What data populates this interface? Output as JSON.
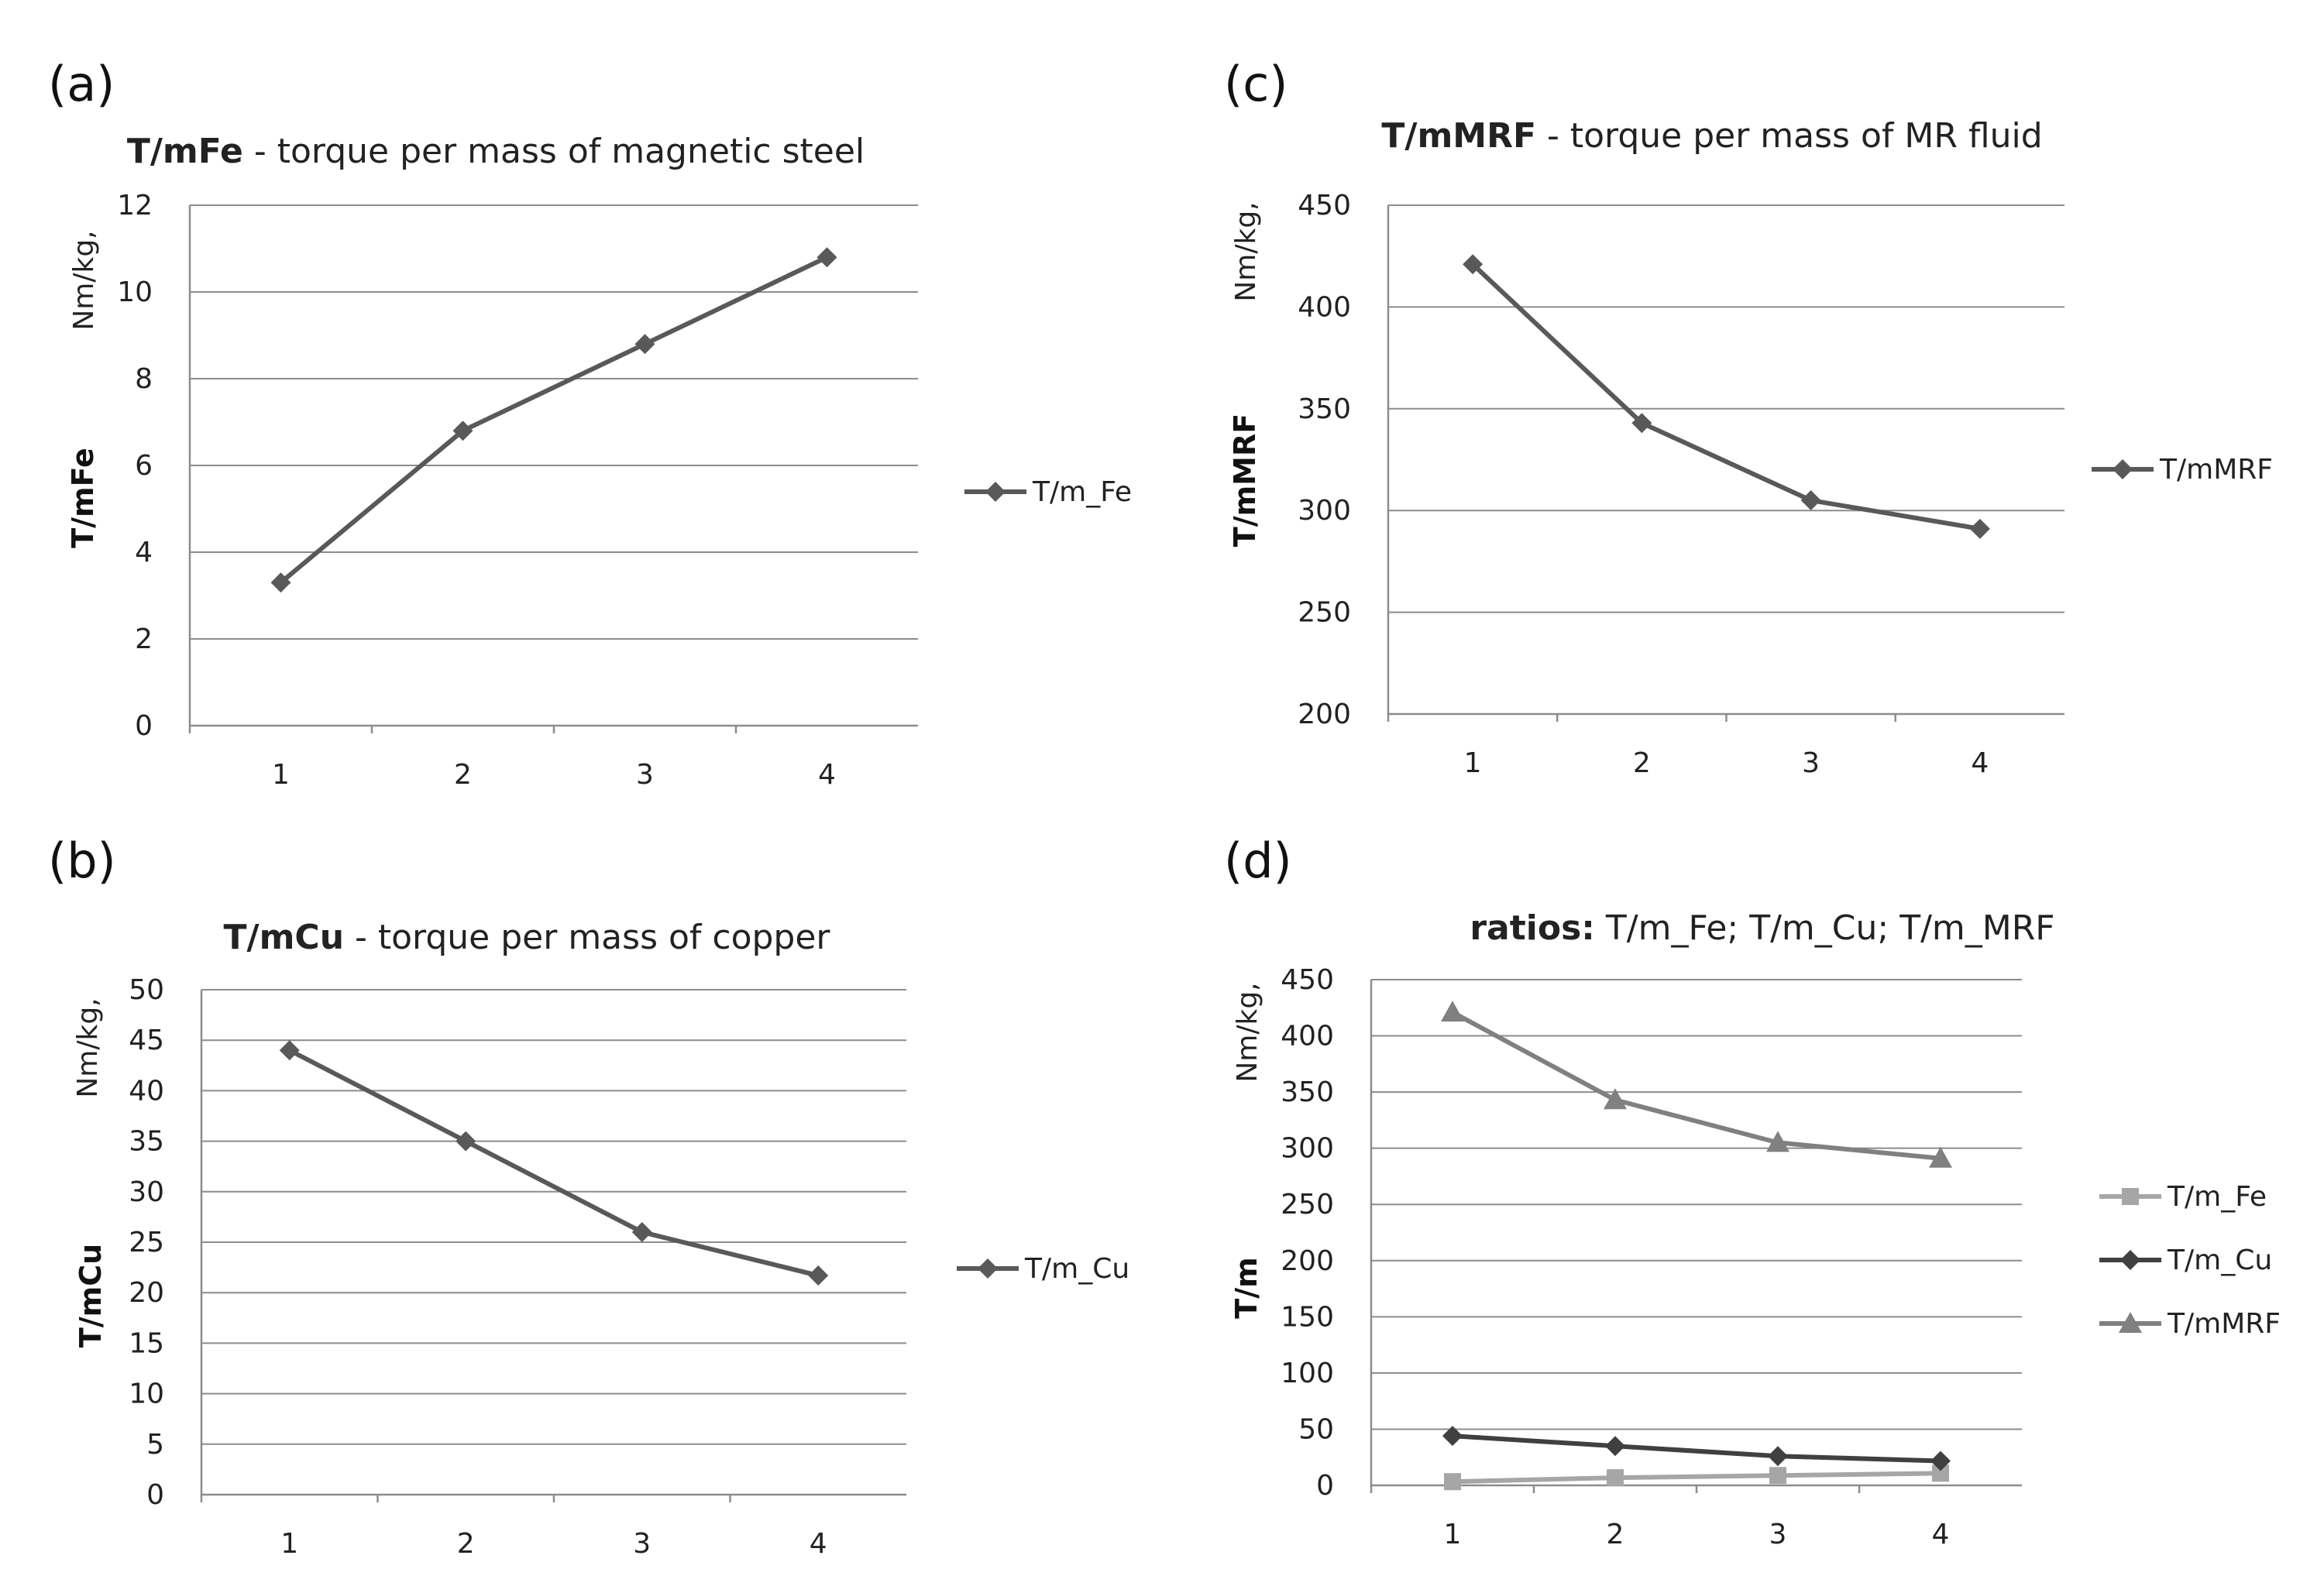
{
  "chart_data": [
    {
      "panel": "(a)",
      "type": "line",
      "title_bold": "T/mFe",
      "title_rest": " - torque per mass of magnetic steel",
      "ylabel": "T/mFe",
      "yunit": "Nm/kg,",
      "categories": [
        "1",
        "2",
        "3",
        "4"
      ],
      "ylim": [
        0,
        12
      ],
      "yticks": [
        0,
        2,
        4,
        6,
        8,
        10,
        12
      ],
      "series": [
        {
          "name": "T/m_Fe",
          "values": [
            3.3,
            6.8,
            8.8,
            10.8
          ],
          "color": "#595959",
          "marker": "diamond"
        }
      ],
      "legend_position": "right"
    },
    {
      "panel": "(b)",
      "type": "line",
      "title_bold": "T/mCu",
      "title_rest": " - torque per mass of  copper",
      "ylabel": "T/mCu",
      "yunit": "Nm/kg,",
      "categories": [
        "1",
        "2",
        "3",
        "4"
      ],
      "ylim": [
        0,
        50
      ],
      "yticks": [
        0,
        5,
        10,
        15,
        20,
        25,
        30,
        35,
        40,
        45,
        50
      ],
      "series": [
        {
          "name": "T/m_Cu",
          "values": [
            44,
            35,
            26,
            21.7
          ],
          "color": "#595959",
          "marker": "diamond"
        }
      ],
      "legend_position": "right"
    },
    {
      "panel": "(c)",
      "type": "line",
      "title_bold": "T/mMRF",
      "title_rest": " - torque per mass of  MR fluid",
      "ylabel": "T/mMRF",
      "yunit": "Nm/kg,",
      "categories": [
        "1",
        "2",
        "3",
        "4"
      ],
      "ylim": [
        200,
        450
      ],
      "yticks": [
        200,
        250,
        300,
        350,
        400,
        450
      ],
      "series": [
        {
          "name": "T/mMRF",
          "values": [
            421,
            343,
            305,
            291
          ],
          "color": "#595959",
          "marker": "diamond"
        }
      ],
      "legend_position": "right"
    },
    {
      "panel": "(d)",
      "type": "line",
      "title_bold": "ratios:",
      "title_rest": " T/m_Fe;   T/m_Cu;   T/m_MRF",
      "ylabel": "T/m",
      "yunit": "Nm/kg,",
      "categories": [
        "1",
        "2",
        "3",
        "4"
      ],
      "ylim": [
        0,
        450
      ],
      "yticks": [
        0,
        50,
        100,
        150,
        200,
        250,
        300,
        350,
        400,
        450
      ],
      "series": [
        {
          "name": "T/m_Fe",
          "values": [
            3.3,
            6.8,
            8.8,
            10.8
          ],
          "color": "#a6a6a6",
          "marker": "square"
        },
        {
          "name": "T/m_Cu",
          "values": [
            44,
            35,
            26,
            21.7
          ],
          "color": "#404040",
          "marker": "diamond"
        },
        {
          "name": "T/mMRF",
          "values": [
            421,
            343,
            305,
            291
          ],
          "color": "#808080",
          "marker": "triangle"
        }
      ],
      "legend_position": "right"
    }
  ]
}
